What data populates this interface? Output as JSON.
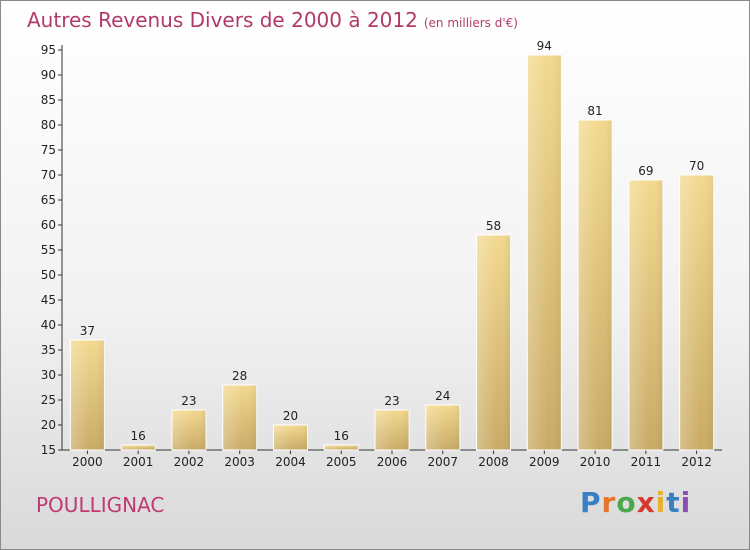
{
  "title": "Autres Revenus Divers de 2000 à 2012",
  "unit": "(en milliers d'€)",
  "location": "POULLIGNAC",
  "logo": {
    "text": "Proxiti",
    "letter_colors": [
      "#3a7fc4",
      "#e8732a",
      "#4aa84a",
      "#d6392f",
      "#e8b12a",
      "#3a7fc4",
      "#8a4fb0"
    ]
  },
  "colors": {
    "bar_top": "#f3d98f",
    "bar_bottom": "#c9ab66",
    "title": "#b23a6a"
  },
  "chart_data": {
    "type": "bar",
    "categories": [
      "2000",
      "2001",
      "2002",
      "2003",
      "2004",
      "2005",
      "2006",
      "2007",
      "2008",
      "2009",
      "2010",
      "2011",
      "2012"
    ],
    "values": [
      37,
      16,
      23,
      28,
      20,
      16,
      23,
      24,
      58,
      94,
      81,
      69,
      70
    ],
    "data_labels": [
      "37",
      "16",
      "23",
      "28",
      "20",
      "16",
      "23",
      "24",
      "58",
      "94",
      "81",
      "69",
      "70"
    ],
    "ylim": [
      15,
      95
    ],
    "yticks": [
      "15",
      "20",
      "25",
      "30",
      "35",
      "40",
      "45",
      "50",
      "55",
      "60",
      "65",
      "70",
      "75",
      "80",
      "85",
      "90",
      "95"
    ],
    "grid": false,
    "xlabel": "",
    "ylabel": ""
  }
}
